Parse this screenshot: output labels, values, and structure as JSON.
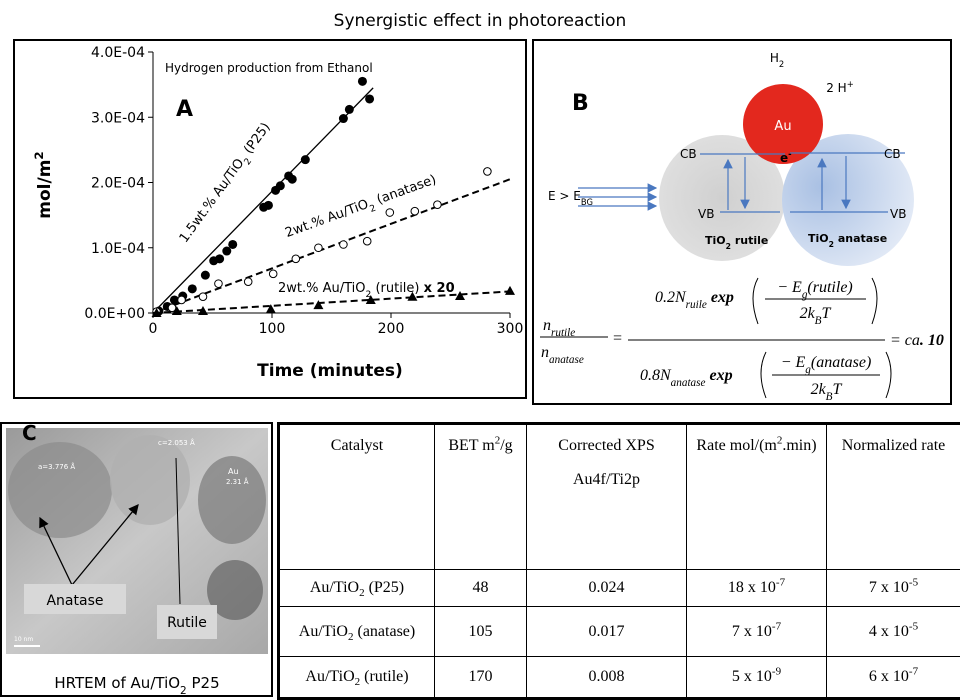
{
  "title": "Synergistic effect in photoreaction",
  "chart_data": {
    "type": "scatter",
    "panel_label": "A",
    "subtitle": "Hydrogen production from Ethanol",
    "x_label": "Time (minutes)",
    "y_label": [
      {
        "t": "mol/m"
      },
      {
        "sup": "2"
      }
    ],
    "xlim": [
      0,
      300
    ],
    "xticks": [
      0,
      100,
      200,
      300
    ],
    "ylim": [
      0,
      0.0004
    ],
    "yticks": [
      {
        "value": 0,
        "label": "0.0E+00"
      },
      {
        "value": 0.0001,
        "label": "1.0E-04"
      },
      {
        "value": 0.0002,
        "label": "2.0E-04"
      },
      {
        "value": 0.0003,
        "label": "3.0E-04"
      },
      {
        "value": 0.0004,
        "label": "4.0E-04"
      }
    ],
    "series": [
      {
        "color": "#000000",
        "marker": "filled-circle",
        "x": [
          5,
          12,
          18,
          25,
          33,
          44,
          51,
          56,
          62,
          67,
          93,
          97,
          103,
          107,
          114,
          117,
          128,
          160,
          165,
          176,
          182
        ],
        "values": [
          3e-06,
          1e-05,
          2e-05,
          2.6e-05,
          3.7e-05,
          5.8e-05,
          8e-05,
          8.3e-05,
          9.5e-05,
          0.000105,
          0.000162,
          0.000165,
          0.000188,
          0.000195,
          0.00021,
          0.000205,
          0.000235,
          0.000298,
          0.000312,
          0.000355,
          0.000328
        ],
        "fit_x": [
          0,
          185
        ],
        "fit_y": [
          0,
          0.000345
        ],
        "fit_dash": false,
        "label": [
          {
            "t": "1.5wt.% Au/TiO"
          },
          {
            "sub": "2"
          },
          {
            "t": " (P25)"
          }
        ]
      },
      {
        "color": "#000000",
        "marker": "open-circle",
        "x": [
          3,
          16,
          24,
          42,
          55,
          80,
          101,
          120,
          139,
          160,
          180,
          199,
          220,
          239,
          281
        ],
        "values": [
          2e-06,
          8e-06,
          2e-05,
          2.5e-05,
          4.5e-05,
          4.8e-05,
          6e-05,
          8.3e-05,
          0.0001,
          0.000105,
          0.00011,
          0.000154,
          0.000156,
          0.000166,
          0.000217
        ],
        "fit_x": [
          0,
          300
        ],
        "fit_y": [
          0,
          0.000205
        ],
        "fit_dash": true,
        "label": [
          {
            "t": "2wt.% Au/TiO"
          },
          {
            "sub": "2"
          },
          {
            "t": " (anatase)"
          }
        ]
      },
      {
        "color": "#000000",
        "marker": "triangle",
        "x": [
          3,
          20,
          42,
          99,
          139,
          183,
          218,
          258,
          300
        ],
        "values": [
          0,
          3e-06,
          3e-06,
          6e-06,
          1.2e-05,
          2e-05,
          2.5e-05,
          2.6e-05,
          3.4e-05
        ],
        "fit_x": [
          0,
          300
        ],
        "fit_y": [
          0,
          3.3e-05
        ],
        "fit_dash": true,
        "label": [
          {
            "t": "2wt.% Au/TiO"
          },
          {
            "sub": "2"
          },
          {
            "t": " (rutile) "
          },
          {
            "b": "x 20"
          }
        ]
      }
    ]
  },
  "diagram": {
    "panel_label": "B",
    "h2": [
      {
        "t": "H"
      },
      {
        "sub": "2"
      }
    ],
    "proton": [
      {
        "t": "2 H"
      },
      {
        "sup": "+"
      }
    ],
    "au": "Au",
    "cb_left": "CB",
    "cb_right": "CB",
    "electron": [
      {
        "t": "e"
      },
      {
        "sup": "-"
      }
    ],
    "energy": [
      {
        "t": "E > E"
      },
      {
        "sub": "BG"
      }
    ],
    "vb_left": "VB",
    "vb_right": "VB",
    "rutile": [
      {
        "t": "TiO"
      },
      {
        "sub": "2"
      },
      {
        "t": " rutile"
      }
    ],
    "anatase": [
      {
        "t": "TiO"
      },
      {
        "sub": "2"
      },
      {
        "t": " anatase"
      }
    ]
  },
  "equation": {
    "lhs_top": [
      {
        "t": "n"
      },
      {
        "sub": "rutile"
      }
    ],
    "lhs_bottom": [
      {
        "t": "n"
      },
      {
        "sub": "anatase"
      }
    ],
    "equals": "=",
    "num_coef": [
      {
        "t": "0.2N"
      },
      {
        "sub": "ruile"
      },
      {
        "b": " exp"
      }
    ],
    "num_top": [
      {
        "t": "− E"
      },
      {
        "sub": "g"
      },
      {
        "t": "(rutile)"
      }
    ],
    "num_bottom": [
      {
        "t": "2k"
      },
      {
        "sub": "B"
      },
      {
        "t": "T"
      }
    ],
    "den_coef": [
      {
        "t": "0.8N"
      },
      {
        "sub": "anatase"
      },
      {
        "b": " exp"
      }
    ],
    "den_top": [
      {
        "t": "− E"
      },
      {
        "sub": "g"
      },
      {
        "t": "(anatase)"
      }
    ],
    "den_bottom": [
      {
        "t": "2k"
      },
      {
        "sub": "B"
      },
      {
        "t": "T"
      }
    ],
    "result": [
      {
        "t": "= ca"
      },
      {
        "b": ". 10"
      }
    ]
  },
  "image_panel": {
    "panel_label": "C",
    "lattice_a": "a=3.776 Å",
    "lattice_c": "c=2.053 Å",
    "au_label": "Au",
    "au_spacing": "2.31 Å",
    "scale": "10 nm",
    "anatase": "Anatase",
    "rutile": "Rutile",
    "caption": [
      {
        "t": "HRTEM of Au/TiO"
      },
      {
        "sub": "2"
      },
      {
        "t": " P25"
      }
    ]
  },
  "table": {
    "header": [
      "Catalyst",
      [
        {
          "t": "BET m"
        },
        {
          "sup": "2"
        },
        {
          "t": "/g"
        }
      ],
      "Corrected XPS Au4f/Ti2p",
      [
        {
          "t": "Rate mol/(m"
        },
        {
          "sup": "2"
        },
        {
          "t": ".min)"
        }
      ],
      "Normalized rate"
    ],
    "rows": [
      [
        [
          {
            "t": "Au/TiO"
          },
          {
            "sub": "2"
          },
          {
            "t": " (P25)"
          }
        ],
        48,
        0.024,
        [
          {
            "t": "18 x 10"
          },
          {
            "sup": "-7"
          }
        ],
        [
          {
            "t": "7 x 10"
          },
          {
            "sup": "-5"
          }
        ]
      ],
      [
        [
          {
            "t": "Au/TiO"
          },
          {
            "sub": "2"
          },
          {
            "t": " (anatase)"
          }
        ],
        105,
        0.017,
        [
          {
            "t": "7 x 10"
          },
          {
            "sup": "-7"
          }
        ],
        [
          {
            "t": "4 x 10"
          },
          {
            "sup": "-5"
          }
        ]
      ],
      [
        [
          {
            "t": "Au/TiO"
          },
          {
            "sub": "2"
          },
          {
            "t": " (rutile)"
          }
        ],
        170,
        0.008,
        [
          {
            "t": "5 x 10"
          },
          {
            "sup": "-9"
          }
        ],
        [
          {
            "t": "6 x 10"
          },
          {
            "sup": "-7"
          }
        ]
      ]
    ]
  }
}
